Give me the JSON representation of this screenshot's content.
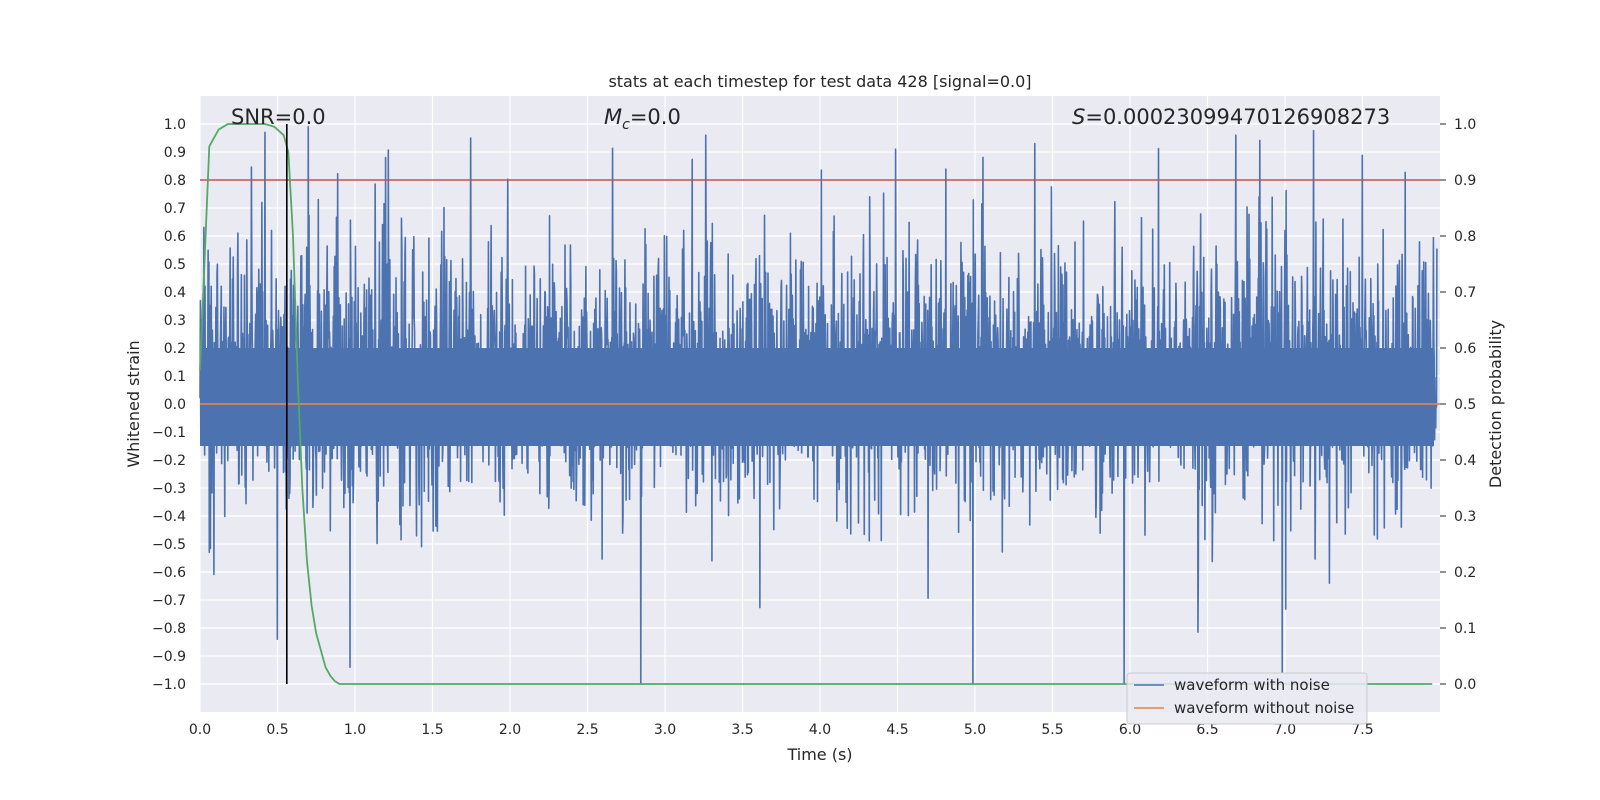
{
  "chart_data": {
    "type": "line",
    "title": "stats at each timestep for test data 428 [signal=0.0]",
    "xlabel": "Time (s)",
    "ylabel": "Whitened strain",
    "y2label": "Detection probability",
    "xlim": [
      0.0,
      8.0
    ],
    "ylim": [
      -1.1,
      1.1
    ],
    "y2lim": [
      -0.05,
      1.05
    ],
    "xticks": [
      0.0,
      0.5,
      1.0,
      1.5,
      2.0,
      2.5,
      3.0,
      3.5,
      4.0,
      4.5,
      5.0,
      5.5,
      6.0,
      6.5,
      7.0,
      7.5
    ],
    "xtick_labels": [
      "0.0",
      "0.5",
      "1.0",
      "1.5",
      "2.0",
      "2.5",
      "3.0",
      "3.5",
      "4.0",
      "4.5",
      "5.0",
      "5.5",
      "6.0",
      "6.5",
      "7.0",
      "7.5"
    ],
    "yticks": [
      1.0,
      0.9,
      0.8,
      0.7,
      0.6,
      0.5,
      0.4,
      0.3,
      0.2,
      0.1,
      0.0,
      -0.1,
      -0.2,
      -0.3,
      -0.4,
      -0.5,
      -0.6,
      -0.7,
      -0.8,
      -0.9,
      -1.0
    ],
    "ytick_labels": [
      "1.0",
      "0.9",
      "0.8",
      "0.7",
      "0.6",
      "0.5",
      "0.4",
      "0.3",
      "0.2",
      "0.1",
      "0.0",
      "−0.1",
      "−0.2",
      "−0.3",
      "−0.4",
      "−0.5",
      "−0.6",
      "−0.7",
      "−0.8",
      "−0.9",
      "−1.0"
    ],
    "y2ticks": [
      1.0,
      0.9,
      0.8,
      0.7,
      0.6,
      0.5,
      0.4,
      0.3,
      0.2,
      0.1,
      0.0
    ],
    "y2tick_labels": [
      "1.0",
      "0.9",
      "0.8",
      "0.7",
      "0.6",
      "0.5",
      "0.4",
      "0.3",
      "0.2",
      "0.1",
      "0.0"
    ],
    "annotations": {
      "snr": "SNR=0.0",
      "mc_symbol": "M",
      "mc_sub": "c",
      "mc_value": "=0.0",
      "s_symbol": "S",
      "s_value": "=0.00023099470126908273"
    },
    "series": [
      {
        "name": "waveform with noise",
        "color": "#4c72b0",
        "axis": "left",
        "description": "dense noisy whitened strain, roughly -1.0 to 1.0, bulk within about -0.2 to 0.4",
        "notable_peaks": [
          {
            "x": 0.7,
            "y": 0.99
          },
          {
            "x": 0.42,
            "y": 0.97
          },
          {
            "x": 3.27,
            "y": 0.96
          },
          {
            "x": 6.7,
            "y": 0.96
          },
          {
            "x": 1.75,
            "y": 0.95
          },
          {
            "x": 5.4,
            "y": 0.93
          },
          {
            "x": 4.5,
            "y": 0.91
          },
          {
            "x": 1.2,
            "y": 0.88
          }
        ],
        "notable_troughs": [
          {
            "x": 2.85,
            "y": -1.0
          },
          {
            "x": 5.0,
            "y": -1.0
          },
          {
            "x": 7.0,
            "y": -0.96
          },
          {
            "x": 0.97,
            "y": -0.94
          },
          {
            "x": 0.5,
            "y": -0.84
          }
        ]
      },
      {
        "name": "waveform without noise",
        "color": "#dd8452",
        "axis": "left",
        "x": [
          0.0,
          8.0
        ],
        "y": [
          0.0,
          0.0
        ]
      },
      {
        "name": "detection probability",
        "color": "#55a868",
        "axis": "right",
        "x": [
          0.0,
          0.06,
          0.12,
          0.18,
          0.24,
          0.3,
          0.36,
          0.42,
          0.48,
          0.54,
          0.57,
          0.6,
          0.63,
          0.66,
          0.69,
          0.72,
          0.75,
          0.78,
          0.81,
          0.84,
          0.87,
          0.9,
          0.93,
          1.0,
          2.0,
          4.0,
          6.0,
          7.0,
          7.95
        ],
        "y": [
          0.56,
          0.96,
          0.99,
          1.0,
          1.0,
          1.0,
          1.0,
          1.0,
          0.995,
          0.98,
          0.95,
          0.8,
          0.55,
          0.35,
          0.22,
          0.14,
          0.09,
          0.06,
          0.03,
          0.015,
          0.005,
          0.0,
          0.0,
          0.0,
          0.0,
          0.0,
          0.0,
          0.0,
          0.0
        ]
      }
    ],
    "reference_lines": [
      {
        "name": "threshold",
        "orientation": "horizontal",
        "axis": "right",
        "value": 0.9,
        "color": "#c44e52"
      },
      {
        "name": "marker",
        "orientation": "vertical",
        "x": 0.56,
        "y_from": -1.0,
        "y_to": 1.0,
        "color": "#000000"
      }
    ],
    "legend": {
      "position": "lower right",
      "entries": [
        {
          "label": "waveform with noise",
          "color": "#4c72b0"
        },
        {
          "label": "waveform without noise",
          "color": "#dd8452"
        }
      ]
    },
    "style": {
      "background": "#eaeaf2",
      "grid_color": "#ffffff",
      "grid": true
    }
  }
}
